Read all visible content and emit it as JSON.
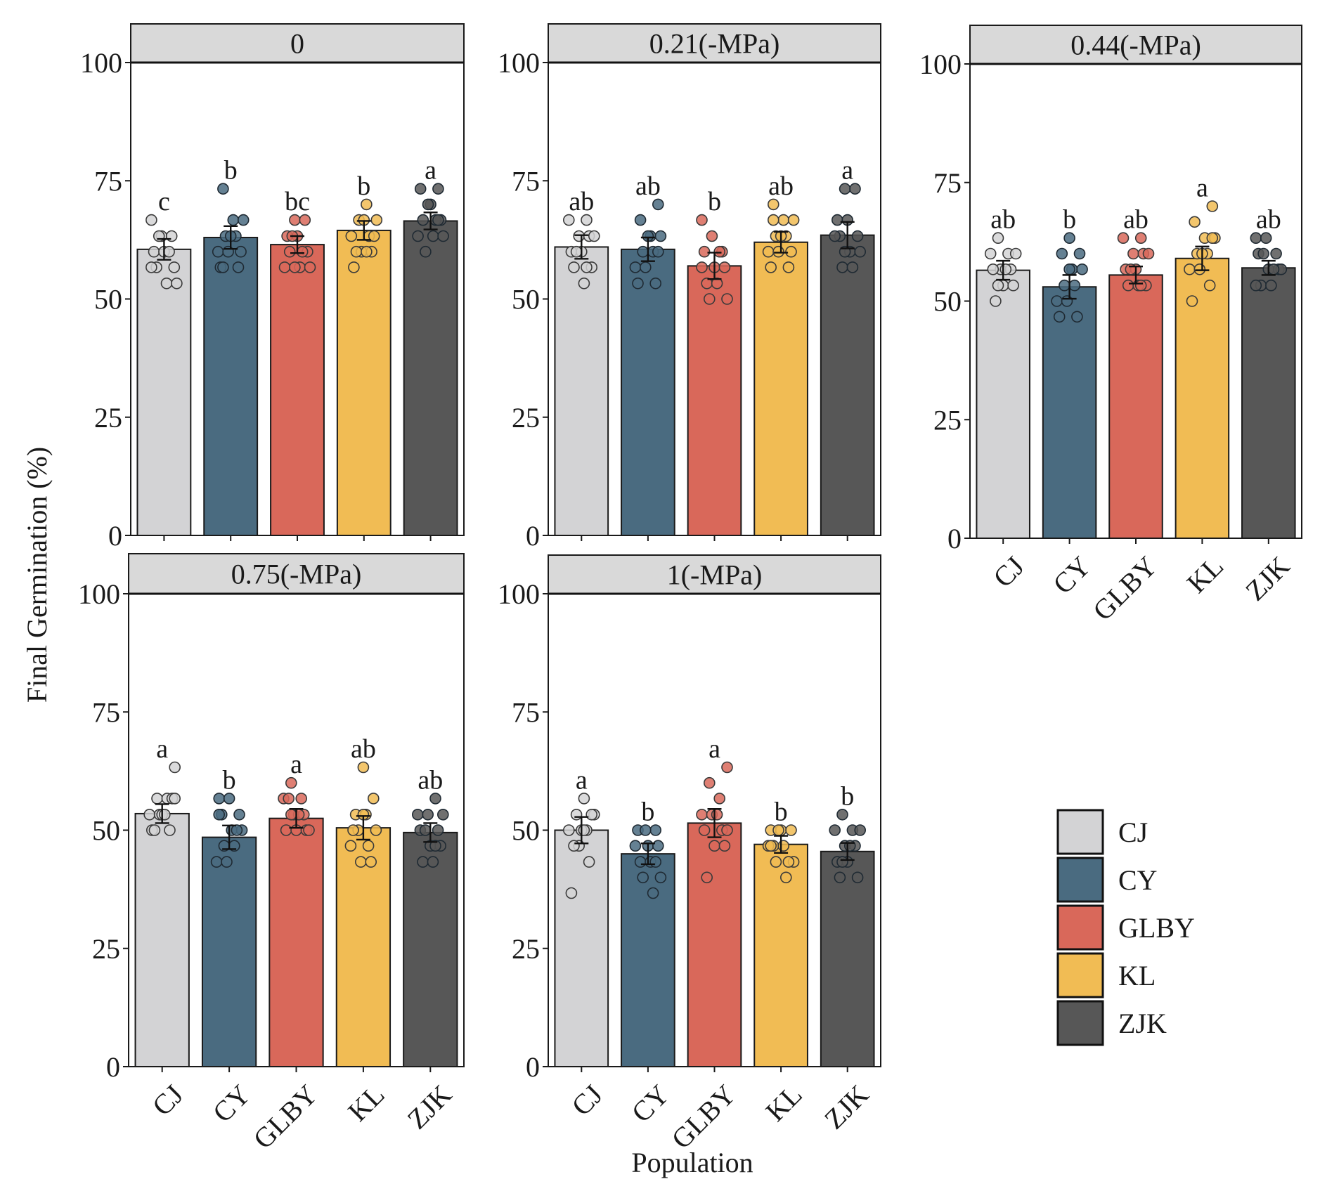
{
  "chart_data": {
    "type": "bar",
    "facet_by": "Osmotic potential",
    "xlabel": "Population",
    "ylabel": "Final Germination (%)",
    "ylim": [
      0,
      100
    ],
    "yticks": [
      0,
      25,
      50,
      75,
      100
    ],
    "categories": [
      "CJ",
      "CY",
      "GLBY",
      "KL",
      "ZJK"
    ],
    "colors": {
      "CJ": "#d3d3d5",
      "CY": "#4a6b80",
      "GLBY": "#d9685a",
      "KL": "#f1bc54",
      "ZJK": "#575757"
    },
    "legend": {
      "position": "right",
      "entries": [
        "CJ",
        "CY",
        "GLBY",
        "KL",
        "ZJK"
      ]
    },
    "panels": [
      {
        "title": "0",
        "values": [
          60.5,
          63,
          61.5,
          64.5,
          66.5
        ],
        "errors": [
          2.2,
          2.4,
          1.8,
          2.0,
          1.8
        ],
        "letters": [
          "c",
          "b",
          "bc",
          "b",
          "a"
        ],
        "points": [
          [
            66.7,
            63.3,
            63.3,
            60,
            60,
            56.7,
            56.7,
            53.3,
            53.3,
            63.3,
            60,
            56.7
          ],
          [
            73.3,
            66.7,
            66.7,
            63.3,
            63.3,
            60,
            60,
            56.7,
            56.7,
            63.3,
            60,
            56.7
          ],
          [
            66.7,
            66.7,
            63.3,
            63.3,
            60,
            60,
            56.7,
            56.7,
            63.3,
            60,
            56.7,
            56.7
          ],
          [
            70,
            66.7,
            66.7,
            63.3,
            63.3,
            60,
            60,
            56.7,
            66.7,
            63.3,
            60,
            60
          ],
          [
            73.3,
            73.3,
            70,
            66.7,
            66.7,
            63.3,
            63.3,
            60,
            66.7,
            63.3,
            70,
            66.7
          ]
        ]
      },
      {
        "title": "0.21(-MPa)",
        "values": [
          61,
          60.5,
          57,
          62,
          63.5
        ],
        "errors": [
          2.5,
          2.5,
          2.8,
          2.2,
          2.8
        ],
        "letters": [
          "ab",
          "ab",
          "b",
          "ab",
          "a"
        ],
        "points": [
          [
            66.7,
            66.7,
            63.3,
            63.3,
            60,
            60,
            56.7,
            56.7,
            53.3,
            63.3,
            60,
            56.7
          ],
          [
            70,
            66.7,
            63.3,
            63.3,
            60,
            60,
            56.7,
            56.7,
            53.3,
            53.3,
            63.3,
            60
          ],
          [
            66.7,
            63.3,
            60,
            60,
            56.7,
            56.7,
            53.3,
            53.3,
            50,
            50,
            60,
            56.7
          ],
          [
            70,
            66.7,
            66.7,
            63.3,
            63.3,
            60,
            60,
            56.7,
            56.7,
            63.3,
            60,
            66.7
          ],
          [
            73.3,
            73.3,
            66.7,
            66.7,
            63.3,
            63.3,
            60,
            60,
            56.7,
            56.7,
            63.3,
            60
          ]
        ]
      },
      {
        "title": "0.44(-MPa)",
        "values": [
          56.5,
          53,
          55.5,
          59,
          57
        ],
        "errors": [
          2.0,
          2.5,
          1.8,
          2.5,
          1.5
        ],
        "letters": [
          "ab",
          "b",
          "ab",
          "a",
          "ab"
        ],
        "points": [
          [
            63.3,
            60,
            60,
            56.7,
            56.7,
            56.7,
            53.3,
            53.3,
            50,
            56.7,
            60,
            53.3
          ],
          [
            63.3,
            60,
            60,
            56.7,
            56.7,
            53.3,
            53.3,
            50,
            50,
            46.7,
            46.7,
            56.7
          ],
          [
            63.3,
            63.3,
            60,
            60,
            56.7,
            56.7,
            53.3,
            53.3,
            53.3,
            60,
            56.7,
            53.3
          ],
          [
            70,
            66.7,
            63.3,
            63.3,
            60,
            60,
            56.7,
            56.7,
            53.3,
            50,
            60,
            63.3
          ],
          [
            63.3,
            63.3,
            60,
            60,
            56.7,
            56.7,
            53.3,
            53.3,
            56.7,
            60,
            56.7,
            53.3
          ]
        ]
      },
      {
        "title": "0.75(-MPa)",
        "values": [
          53.5,
          48.5,
          52.5,
          50.5,
          49.5
        ],
        "errors": [
          2.0,
          2.5,
          2.0,
          2.5,
          2.0
        ],
        "letters": [
          "a",
          "b",
          "a",
          "ab",
          "ab"
        ],
        "points": [
          [
            63.3,
            56.7,
            56.7,
            53.3,
            53.3,
            50,
            50,
            53.3,
            56.7,
            50,
            53.3,
            56.7
          ],
          [
            56.7,
            56.7,
            53.3,
            53.3,
            50,
            50,
            46.7,
            46.7,
            43.3,
            43.3,
            50,
            53.3
          ],
          [
            60,
            56.7,
            56.7,
            53.3,
            53.3,
            50,
            50,
            50,
            56.7,
            53.3,
            50,
            53.3
          ],
          [
            63.3,
            56.7,
            53.3,
            53.3,
            50,
            50,
            46.7,
            46.7,
            43.3,
            43.3,
            50,
            53.3
          ],
          [
            56.7,
            53.3,
            53.3,
            50,
            50,
            46.7,
            46.7,
            43.3,
            43.3,
            53.3,
            50,
            46.7
          ]
        ]
      },
      {
        "title": "1(-MPa)",
        "values": [
          50,
          45,
          51.5,
          47,
          45.5
        ],
        "errors": [
          2.8,
          2.2,
          3.0,
          1.8,
          1.8
        ],
        "letters": [
          "a",
          "b",
          "a",
          "b",
          "b"
        ],
        "points": [
          [
            56.7,
            53.3,
            53.3,
            50,
            50,
            46.7,
            43.3,
            36.7,
            50,
            53.3,
            46.7,
            50
          ],
          [
            50,
            50,
            46.7,
            46.7,
            43.3,
            43.3,
            40,
            40,
            36.7,
            46.7,
            50,
            43.3
          ],
          [
            63.3,
            60,
            56.7,
            53.3,
            53.3,
            50,
            50,
            46.7,
            46.7,
            40,
            53.3,
            50
          ],
          [
            50,
            50,
            50,
            46.7,
            46.7,
            43.3,
            43.3,
            40,
            46.7,
            50,
            43.3,
            46.7
          ],
          [
            53.3,
            50,
            50,
            46.7,
            46.7,
            43.3,
            43.3,
            40,
            40,
            46.7,
            50,
            43.3
          ]
        ]
      }
    ]
  }
}
